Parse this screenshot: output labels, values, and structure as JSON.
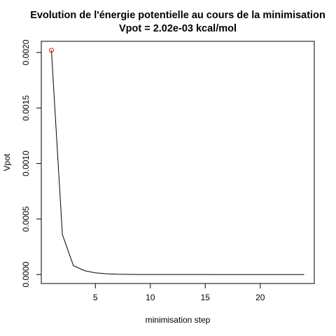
{
  "chart_data": {
    "type": "line",
    "title": "Evolution de l'énergie potentielle au cours de la minimisation",
    "subtitle": "Vpot = 2.02e-03 kcal/mol",
    "xlabel": "minimisation step",
    "ylabel": "Vpot",
    "xlim": [
      0.08,
      24.92
    ],
    "ylim": [
      -8.08e-05,
      0.0021008
    ],
    "x_ticks": [
      5,
      10,
      15,
      20
    ],
    "x_tick_labels": [
      "5",
      "10",
      "15",
      "20"
    ],
    "y_ticks": [
      0.0,
      0.0005,
      0.001,
      0.0015,
      0.002
    ],
    "y_tick_labels": [
      "0.0000",
      "0.0005",
      "0.0010",
      "0.0015",
      "0.0020"
    ],
    "grid": false,
    "legend": "none",
    "series": [
      {
        "x": [
          1,
          2,
          3,
          4,
          5,
          6,
          7,
          8,
          9,
          10,
          11,
          12,
          13,
          14,
          15,
          16,
          17,
          18,
          19,
          20,
          21,
          22,
          23,
          24
        ],
        "values": [
          0.00202,
          0.00036,
          8e-05,
          3.5e-05,
          1.5e-05,
          7e-06,
          3e-06,
          1.5e-06,
          7e-07,
          3e-07,
          2e-07,
          1e-07,
          5e-08,
          2e-08,
          1e-08,
          0.0,
          0.0,
          0.0,
          0.0,
          0.0,
          0.0,
          0.0,
          0.0,
          0.0
        ],
        "color": "#000000"
      }
    ],
    "highlight_point": {
      "x": 1,
      "y": 0.00202,
      "marker": "open-circle",
      "color": "#ff0000"
    }
  }
}
